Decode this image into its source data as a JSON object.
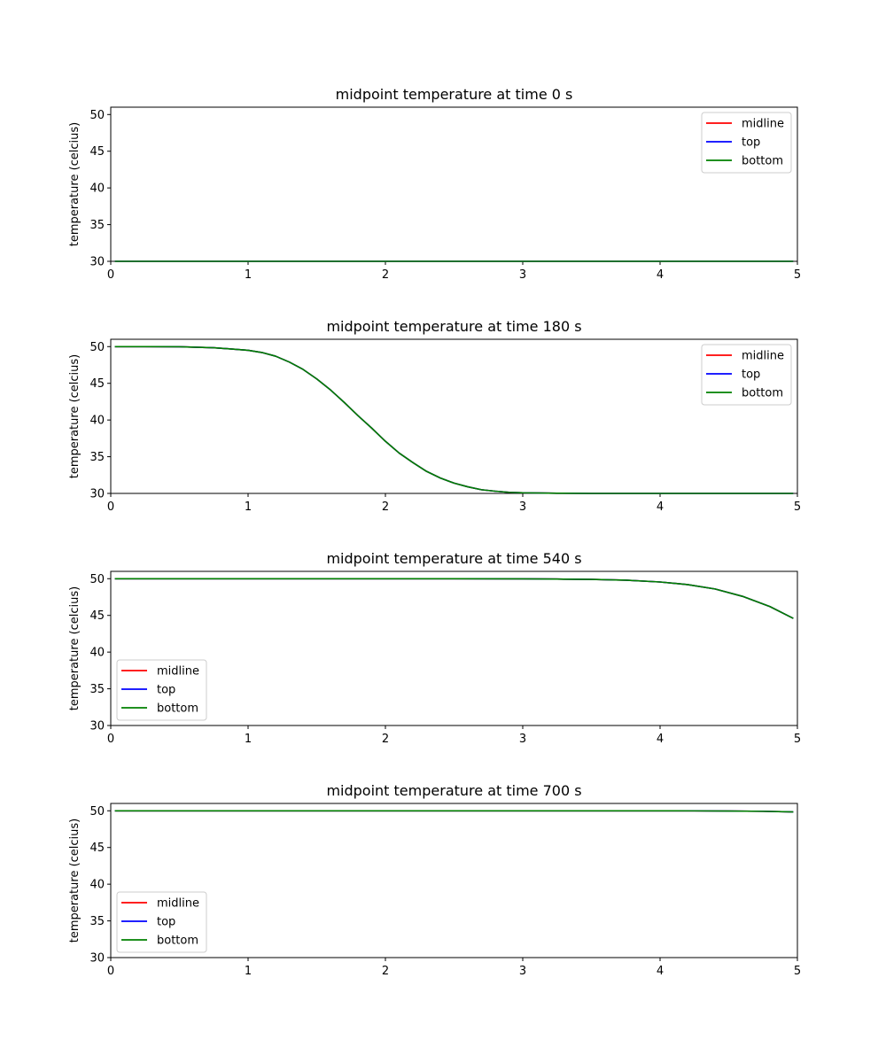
{
  "colors": {
    "background": "#ffffff",
    "axes": "#000000",
    "midline": "#ff0000",
    "top": "#0000ff",
    "bottom": "#008000",
    "legend_border": "#cccccc"
  },
  "chart_data": [
    {
      "type": "line",
      "title": "midpoint temperature at time 0 s",
      "xlabel": "",
      "ylabel": "temperature (celcius)",
      "xlim": [
        0,
        5
      ],
      "ylim": [
        30,
        51
      ],
      "xticks": [
        0,
        1,
        2,
        3,
        4,
        5
      ],
      "yticks": [
        30,
        35,
        40,
        45,
        50
      ],
      "grid": false,
      "legend_position": "upper-right",
      "x": [
        0.03,
        0.5,
        1.0,
        1.5,
        2.0,
        2.5,
        3.0,
        3.5,
        4.0,
        4.5,
        4.97
      ],
      "series": [
        {
          "name": "midline",
          "color": "#ff0000",
          "values": [
            30,
            30,
            30,
            30,
            30,
            30,
            30,
            30,
            30,
            30,
            30
          ]
        },
        {
          "name": "top",
          "color": "#0000ff",
          "values": [
            30,
            30,
            30,
            30,
            30,
            30,
            30,
            30,
            30,
            30,
            30
          ]
        },
        {
          "name": "bottom",
          "color": "#008000",
          "values": [
            30,
            30,
            30,
            30,
            30,
            30,
            30,
            30,
            30,
            30,
            30
          ]
        }
      ]
    },
    {
      "type": "line",
      "title": "midpoint temperature at time 180 s",
      "xlabel": "",
      "ylabel": "temperature (celcius)",
      "xlim": [
        0,
        5
      ],
      "ylim": [
        30,
        51
      ],
      "xticks": [
        0,
        1,
        2,
        3,
        4,
        5
      ],
      "yticks": [
        30,
        35,
        40,
        45,
        50
      ],
      "grid": false,
      "legend_position": "upper-right",
      "x": [
        0.03,
        0.25,
        0.5,
        0.75,
        1.0,
        1.1,
        1.2,
        1.3,
        1.4,
        1.5,
        1.6,
        1.7,
        1.8,
        1.9,
        2.0,
        2.1,
        2.2,
        2.3,
        2.4,
        2.5,
        2.6,
        2.7,
        2.8,
        2.9,
        3.0,
        3.25,
        3.5,
        4.0,
        4.5,
        4.97
      ],
      "series": [
        {
          "name": "midline",
          "color": "#ff0000",
          "values": [
            50,
            50,
            49.98,
            49.85,
            49.5,
            49.2,
            48.7,
            47.9,
            46.9,
            45.6,
            44.1,
            42.4,
            40.6,
            38.9,
            37.1,
            35.5,
            34.2,
            33.0,
            32.1,
            31.4,
            30.9,
            30.5,
            30.3,
            30.15,
            30.08,
            30.02,
            30,
            30,
            30,
            30
          ]
        },
        {
          "name": "top",
          "color": "#0000ff",
          "values": [
            50,
            50,
            49.98,
            49.85,
            49.5,
            49.2,
            48.7,
            47.9,
            46.9,
            45.6,
            44.1,
            42.4,
            40.6,
            38.9,
            37.1,
            35.5,
            34.2,
            33.0,
            32.1,
            31.4,
            30.9,
            30.5,
            30.3,
            30.15,
            30.08,
            30.02,
            30,
            30,
            30,
            30
          ]
        },
        {
          "name": "bottom",
          "color": "#008000",
          "values": [
            50,
            50,
            49.98,
            49.85,
            49.5,
            49.2,
            48.7,
            47.9,
            46.9,
            45.6,
            44.1,
            42.4,
            40.6,
            38.9,
            37.1,
            35.5,
            34.2,
            33.0,
            32.1,
            31.4,
            30.9,
            30.5,
            30.3,
            30.15,
            30.08,
            30.02,
            30,
            30,
            30,
            30
          ]
        }
      ]
    },
    {
      "type": "line",
      "title": "midpoint temperature at time 540 s",
      "xlabel": "",
      "ylabel": "temperature (celcius)",
      "xlim": [
        0,
        5
      ],
      "ylim": [
        30,
        51
      ],
      "xticks": [
        0,
        1,
        2,
        3,
        4,
        5
      ],
      "yticks": [
        30,
        35,
        40,
        45,
        50
      ],
      "grid": false,
      "legend_position": "lower-left",
      "x": [
        0.03,
        0.5,
        1.0,
        1.5,
        2.0,
        2.5,
        3.0,
        3.25,
        3.5,
        3.75,
        4.0,
        4.2,
        4.4,
        4.6,
        4.8,
        4.97
      ],
      "series": [
        {
          "name": "midline",
          "color": "#ff0000",
          "values": [
            50,
            50,
            50,
            50,
            50,
            50,
            49.98,
            49.95,
            49.9,
            49.8,
            49.55,
            49.2,
            48.6,
            47.6,
            46.2,
            44.6
          ]
        },
        {
          "name": "top",
          "color": "#0000ff",
          "values": [
            50,
            50,
            50,
            50,
            50,
            50,
            49.98,
            49.95,
            49.9,
            49.8,
            49.55,
            49.2,
            48.6,
            47.6,
            46.2,
            44.6
          ]
        },
        {
          "name": "bottom",
          "color": "#008000",
          "values": [
            50,
            50,
            50,
            50,
            50,
            50,
            49.98,
            49.95,
            49.9,
            49.8,
            49.55,
            49.2,
            48.6,
            47.6,
            46.2,
            44.6
          ]
        }
      ]
    },
    {
      "type": "line",
      "title": "midpoint temperature at time 700 s",
      "xlabel": "",
      "ylabel": "temperature (celcius)",
      "xlim": [
        0,
        5
      ],
      "ylim": [
        30,
        51
      ],
      "xticks": [
        0,
        1,
        2,
        3,
        4,
        5
      ],
      "yticks": [
        30,
        35,
        40,
        45,
        50
      ],
      "grid": false,
      "legend_position": "lower-left",
      "x": [
        0.03,
        0.5,
        1.0,
        1.5,
        2.0,
        2.5,
        3.0,
        3.5,
        4.0,
        4.25,
        4.5,
        4.75,
        4.97
      ],
      "series": [
        {
          "name": "midline",
          "color": "#ff0000",
          "values": [
            50,
            50,
            50,
            50,
            50,
            50,
            50,
            50,
            50,
            49.99,
            49.97,
            49.93,
            49.85
          ]
        },
        {
          "name": "top",
          "color": "#0000ff",
          "values": [
            50,
            50,
            50,
            50,
            50,
            50,
            50,
            50,
            50,
            49.99,
            49.97,
            49.93,
            49.85
          ]
        },
        {
          "name": "bottom",
          "color": "#008000",
          "values": [
            50,
            50,
            50,
            50,
            50,
            50,
            50,
            50,
            50,
            49.99,
            49.97,
            49.93,
            49.85
          ]
        }
      ]
    }
  ]
}
